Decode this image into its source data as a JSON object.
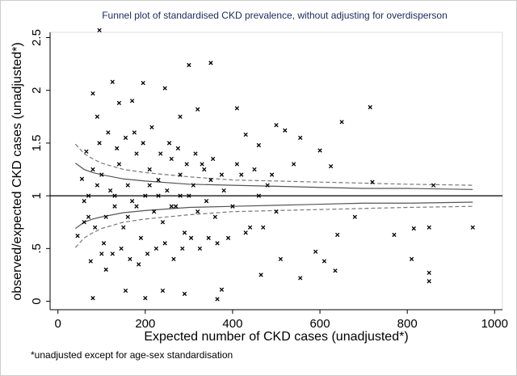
{
  "chart_data": {
    "type": "scatter",
    "title": "Funnel plot of standardised CKD prevalence,  without adjusting for overdisperson",
    "x_label": "Expected number of CKD cases (unadjusted*)",
    "y_label": "observed/expected CKD cases (unadjusted*)",
    "footnote": "*unadjusted except for age-sex standardisation",
    "xlim": [
      -18,
      1018
    ],
    "ylim": [
      -0.08,
      2.55
    ],
    "xticks": [
      0,
      200,
      400,
      600,
      800,
      1000
    ],
    "yticks": [
      0,
      {
        "value": 0.5,
        "label": ".5"
      },
      1,
      1.5,
      2,
      2.5
    ],
    "reference_line": 1,
    "series": [
      {
        "color": "#000000",
        "x": [
          95,
          300,
          350,
          125,
          195,
          245,
          410,
          715,
          650,
          555,
          600,
          625,
          720,
          860,
          950,
          850,
          815,
          770,
          810,
          850,
          850,
          555,
          610,
          635,
          465,
          510,
          375,
          365,
          80,
          200,
          290,
          240,
          155,
          590,
          640,
          680,
          500,
          540,
          460,
          520,
          430,
          80,
          140,
          170,
          320,
          280,
          45,
          60,
          55,
          65,
          90,
          100,
          110,
          75,
          100,
          110,
          120,
          130,
          140,
          150,
          160,
          170,
          180,
          190,
          200,
          210,
          220,
          230,
          240,
          250,
          260,
          270,
          280,
          290,
          300,
          310,
          320,
          330,
          340,
          350,
          360,
          380,
          400,
          420,
          440,
          460,
          480,
          500,
          85,
          95,
          105,
          115,
          125,
          135,
          145,
          155,
          165,
          175,
          185,
          195,
          205,
          215,
          225,
          235,
          245,
          255,
          265,
          275,
          285,
          295,
          305,
          315,
          325,
          335,
          345,
          355,
          365,
          375,
          390,
          410,
          430,
          450,
          470,
          490,
          70,
          70,
          90,
          60,
          80,
          130,
          180,
          230,
          280,
          160,
          210,
          260
        ],
        "values": [
          2.57,
          2.24,
          2.26,
          2.08,
          2.07,
          2.02,
          1.83,
          1.84,
          1.7,
          1.55,
          1.43,
          1.28,
          1.13,
          1.1,
          0.7,
          0.7,
          0.69,
          0.63,
          0.4,
          0.27,
          0.19,
          0.22,
          0.38,
          0.29,
          0.25,
          0.4,
          0.11,
          0.02,
          0.03,
          0.03,
          0.07,
          0.1,
          0.1,
          0.47,
          0.63,
          0.8,
          1.67,
          1.3,
          1.48,
          1.62,
          1.58,
          1.97,
          1.88,
          1.9,
          1.82,
          1.75,
          0.62,
          0.95,
          1.16,
          1.42,
          1.75,
          0.45,
          0.3,
          0.38,
          1.2,
          0.8,
          1.05,
          0.9,
          1.3,
          0.7,
          1.1,
          0.95,
          1.4,
          0.6,
          1.0,
          1.25,
          0.85,
          1.15,
          0.75,
          1.05,
          1.35,
          0.9,
          1.2,
          0.65,
          1.0,
          1.1,
          0.85,
          1.3,
          0.95,
          1.15,
          0.8,
          1.05,
          0.9,
          1.2,
          0.7,
          1.0,
          1.1,
          0.85,
          0.7,
          1.5,
          0.55,
          1.6,
          0.45,
          1.45,
          0.5,
          1.55,
          0.4,
          1.6,
          0.35,
          1.5,
          0.45,
          1.65,
          0.5,
          1.4,
          0.55,
          1.5,
          0.4,
          1.45,
          0.5,
          1.3,
          0.6,
          1.4,
          0.5,
          1.25,
          0.6,
          1.35,
          0.55,
          1.2,
          0.6,
          1.3,
          0.65,
          1.25,
          0.7,
          1.2,
          1.0,
          0.8,
          1.1,
          0.75,
          1.25,
          1.0,
          0.9,
          1.0,
          1.0,
          0.8,
          1.1,
          0.9
        ]
      }
    ],
    "funnel_lines": [
      {
        "style": "solid",
        "color": "#555555",
        "x": [
          40,
          60,
          80,
          100,
          150,
          200,
          300,
          400,
          500,
          600,
          700,
          800,
          950
        ],
        "values": [
          1.31,
          1.25,
          1.22,
          1.2,
          1.16,
          1.14,
          1.11,
          1.1,
          1.09,
          1.08,
          1.07,
          1.07,
          1.06
        ]
      },
      {
        "style": "solid",
        "color": "#555555",
        "x": [
          40,
          60,
          80,
          100,
          150,
          200,
          300,
          400,
          500,
          600,
          700,
          800,
          950
        ],
        "values": [
          0.69,
          0.75,
          0.78,
          0.8,
          0.84,
          0.86,
          0.89,
          0.9,
          0.91,
          0.92,
          0.93,
          0.93,
          0.94
        ]
      },
      {
        "style": "dashed",
        "color": "#777777",
        "x": [
          40,
          60,
          80,
          100,
          150,
          200,
          300,
          400,
          500,
          600,
          700,
          800,
          950
        ],
        "values": [
          1.49,
          1.4,
          1.35,
          1.31,
          1.25,
          1.22,
          1.18,
          1.15,
          1.14,
          1.13,
          1.12,
          1.11,
          1.1
        ]
      },
      {
        "style": "dashed",
        "color": "#777777",
        "x": [
          40,
          60,
          80,
          100,
          150,
          200,
          300,
          400,
          500,
          600,
          700,
          800,
          950
        ],
        "values": [
          0.51,
          0.6,
          0.65,
          0.69,
          0.75,
          0.78,
          0.82,
          0.85,
          0.86,
          0.87,
          0.88,
          0.89,
          0.9
        ]
      }
    ]
  }
}
